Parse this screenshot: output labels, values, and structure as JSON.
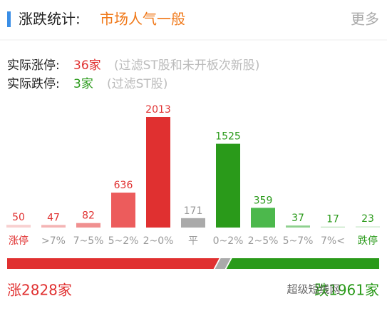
{
  "header": {
    "title": "涨跌统计:",
    "mood": "市场人气一般",
    "more": "更多"
  },
  "limit_up": {
    "label": "实际涨停:",
    "count": "36家",
    "note": "(过滤ST股和未开板次新股)"
  },
  "limit_down": {
    "label": "实际跌停:",
    "count": "3家",
    "note": "(过滤ST股)"
  },
  "chart_data": {
    "type": "bar",
    "categories": [
      "涨停",
      ">7%",
      "7~5%",
      "5~2%",
      "2~0%",
      "平",
      "0~2%",
      "2~5%",
      "5~7%",
      "7%<",
      "跌停"
    ],
    "values": [
      50,
      47,
      82,
      636,
      2013,
      171,
      1525,
      359,
      37,
      17,
      23
    ],
    "colors": [
      "#f8d0d0",
      "#f4b4b4",
      "#f09090",
      "#ec5c5c",
      "#e03030",
      "#aaaaaa",
      "#2a9a1a",
      "#4cb84c",
      "#8fd08f",
      "#bfe4bf",
      "#d8efd8"
    ],
    "label_colors": [
      "#e03030",
      "#e03030",
      "#e03030",
      "#e03030",
      "#e03030",
      "#999999",
      "#2a9a1a",
      "#2a9a1a",
      "#2a9a1a",
      "#2a9a1a",
      "#2a9a1a"
    ],
    "category_colors": [
      "#e03030",
      "#999999",
      "#999999",
      "#999999",
      "#999999",
      "#999999",
      "#999999",
      "#999999",
      "#999999",
      "#999999",
      "#2a9a1a"
    ]
  },
  "summary": {
    "up": {
      "value": 2828,
      "label": "涨2828家"
    },
    "down": {
      "value": 1961,
      "label": "跌1961家"
    },
    "watermark": "超级短线网"
  }
}
